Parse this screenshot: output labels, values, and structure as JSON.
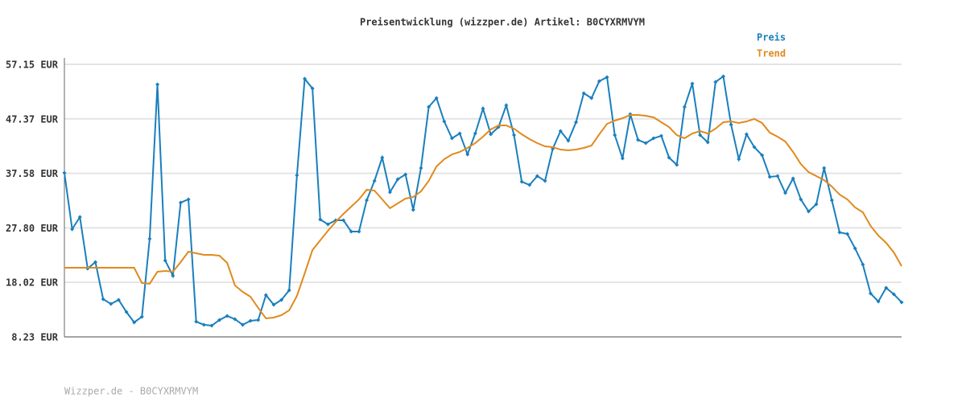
{
  "chart_data": {
    "type": "line",
    "title": "Preisentwicklung (wizzper.de) Artikel: B0CYXRMVYM",
    "footer": "Wizzper.de - B0CYXRMVYM",
    "ylim": [
      8.23,
      57.15
    ],
    "yticks": [
      {
        "value": 8.23,
        "label": "8.23 EUR"
      },
      {
        "value": 18.02,
        "label": "18.02 EUR"
      },
      {
        "value": 27.8,
        "label": "27.80 EUR"
      },
      {
        "value": 37.58,
        "label": "37.58 EUR"
      },
      {
        "value": 47.37,
        "label": "47.37 EUR"
      },
      {
        "value": 57.15,
        "label": "57.15 EUR"
      }
    ],
    "grid": true,
    "legend": "top-right",
    "series": [
      {
        "name": "Preis",
        "color": "#1a7fbd",
        "markers": true,
        "values": [
          37.67,
          27.57,
          29.73,
          20.5,
          21.65,
          15.0,
          14.15,
          14.87,
          12.7,
          10.83,
          11.84,
          25.84,
          53.54,
          21.94,
          19.2,
          32.33,
          32.91,
          10.97,
          10.4,
          10.25,
          11.26,
          11.98,
          11.41,
          10.4,
          11.12,
          11.26,
          15.74,
          14.0,
          14.87,
          16.6,
          37.24,
          54.55,
          52.82,
          29.3,
          28.43,
          29.15,
          29.15,
          27.13,
          27.13,
          32.76,
          36.23,
          40.41,
          34.21,
          36.52,
          37.38,
          31.03,
          38.53,
          49.5,
          51.09,
          46.9,
          43.87,
          44.74,
          40.99,
          44.74,
          49.21,
          44.59,
          45.89,
          49.79,
          44.45,
          36.08,
          35.5,
          37.09,
          36.23,
          42.0,
          45.17,
          43.44,
          46.76,
          51.96,
          51.09,
          54.12,
          54.84,
          44.45,
          40.27,
          48.2,
          43.58,
          43.01,
          43.87,
          44.31,
          40.41,
          39.11,
          49.5,
          53.69,
          44.45,
          43.15,
          53.98,
          54.99,
          46.33,
          40.12,
          44.59,
          42.29,
          40.84,
          36.95,
          37.09,
          34.06,
          36.66,
          32.91,
          30.74,
          32.04,
          38.53,
          32.76,
          26.99,
          26.7,
          24.11,
          21.22,
          16.03,
          14.58,
          17.03,
          15.88,
          14.44
        ]
      },
      {
        "name": "Trend",
        "color": "#e08a1e",
        "markers": false,
        "values": [
          20.64,
          20.64,
          20.64,
          20.64,
          20.64,
          20.64,
          20.64,
          20.64,
          20.64,
          20.64,
          17.9,
          17.76,
          19.92,
          20.07,
          19.92,
          21.65,
          23.53,
          23.24,
          22.95,
          22.95,
          22.81,
          21.51,
          17.47,
          16.31,
          15.45,
          13.43,
          11.55,
          11.7,
          12.13,
          13.0,
          15.59,
          19.63,
          23.82,
          25.55,
          27.28,
          28.87,
          30.31,
          31.61,
          32.91,
          34.64,
          34.49,
          32.91,
          31.32,
          32.19,
          33.05,
          33.34,
          34.35,
          36.23,
          38.82,
          40.12,
          40.99,
          41.42,
          42.14,
          43.01,
          44.16,
          45.46,
          46.18,
          46.18,
          45.61,
          44.59,
          43.73,
          43.01,
          42.43,
          42.29,
          41.85,
          41.71,
          41.85,
          42.14,
          42.58,
          44.59,
          46.47,
          47.05,
          47.48,
          48.06,
          48.06,
          47.91,
          47.63,
          46.76,
          45.89,
          44.45,
          43.87,
          44.74,
          45.17,
          44.74,
          45.61,
          46.76,
          46.9,
          46.62,
          46.9,
          47.34,
          46.62,
          44.88,
          44.16,
          43.3,
          41.42,
          39.25,
          37.81,
          37.09,
          36.37,
          35.22,
          33.77,
          32.91,
          31.47,
          30.6,
          28.15,
          26.42,
          25.12,
          23.39,
          20.93
        ]
      }
    ]
  }
}
